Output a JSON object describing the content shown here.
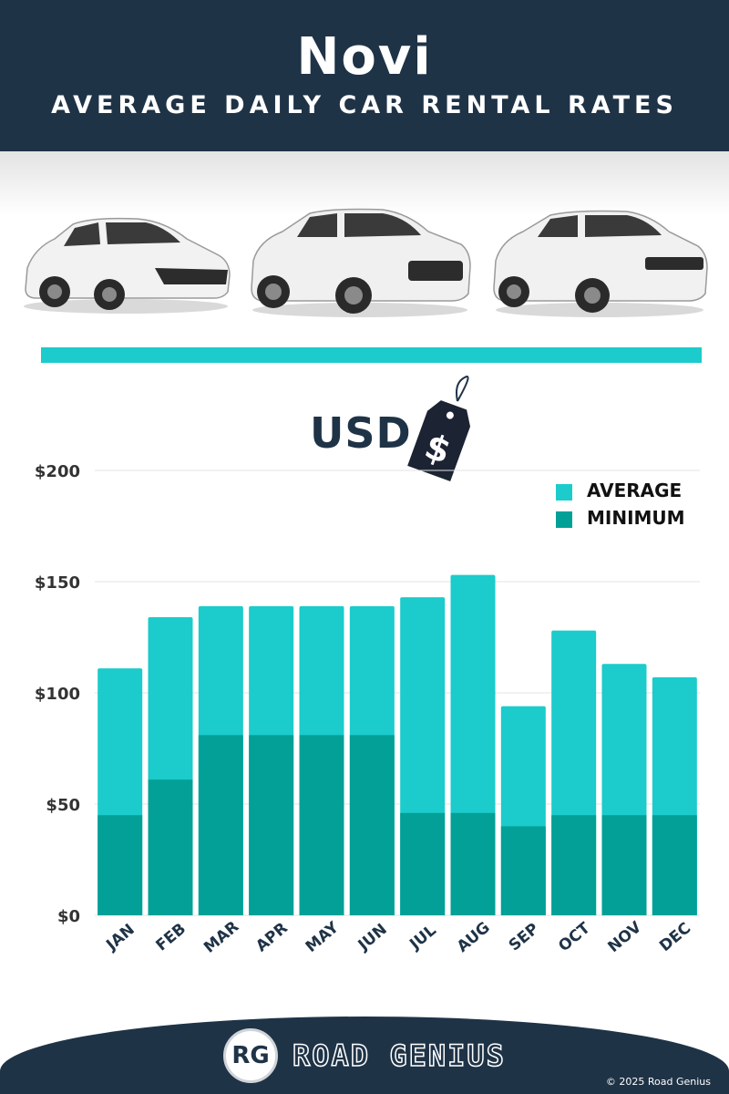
{
  "header": {
    "city": "Novi",
    "subtitle": "AVERAGE DAILY CAR RENTAL RATES"
  },
  "images": {
    "cars": [
      "hatchback-car-icon",
      "suv-car-icon",
      "crossover-car-icon"
    ],
    "price_tag": "price-tag-icon"
  },
  "currency": {
    "label": "USD",
    "tag_symbol": "$"
  },
  "colors": {
    "navy": "#1f3347",
    "average": "#1ccbcb",
    "minimum": "#02a096",
    "rule": "#1ccbcb"
  },
  "chart_data": {
    "type": "bar",
    "stacking": "overlay",
    "categories": [
      "JAN",
      "FEB",
      "MAR",
      "APR",
      "MAY",
      "JUN",
      "JUL",
      "AUG",
      "SEP",
      "OCT",
      "NOV",
      "DEC"
    ],
    "series": [
      {
        "name": "AVERAGE",
        "values": [
          111,
          134,
          139,
          139,
          139,
          139,
          143,
          153,
          94,
          128,
          113,
          107
        ]
      },
      {
        "name": "MINIMUM",
        "values": [
          45,
          61,
          81,
          81,
          81,
          81,
          46,
          46,
          40,
          45,
          45,
          45
        ]
      }
    ],
    "y_ticks": [
      "$0",
      "$50",
      "$100",
      "$150",
      "$200"
    ],
    "y_tick_values": [
      0,
      50,
      100,
      150,
      200
    ],
    "ylim": [
      0,
      200
    ],
    "grid": true,
    "legend_position": "top-right"
  },
  "legend": {
    "average": "AVERAGE",
    "minimum": "MINIMUM"
  },
  "footer": {
    "logo_text": "RG",
    "brand": "ROAD GENIUS",
    "copyright": "© 2025 Road Genius"
  }
}
